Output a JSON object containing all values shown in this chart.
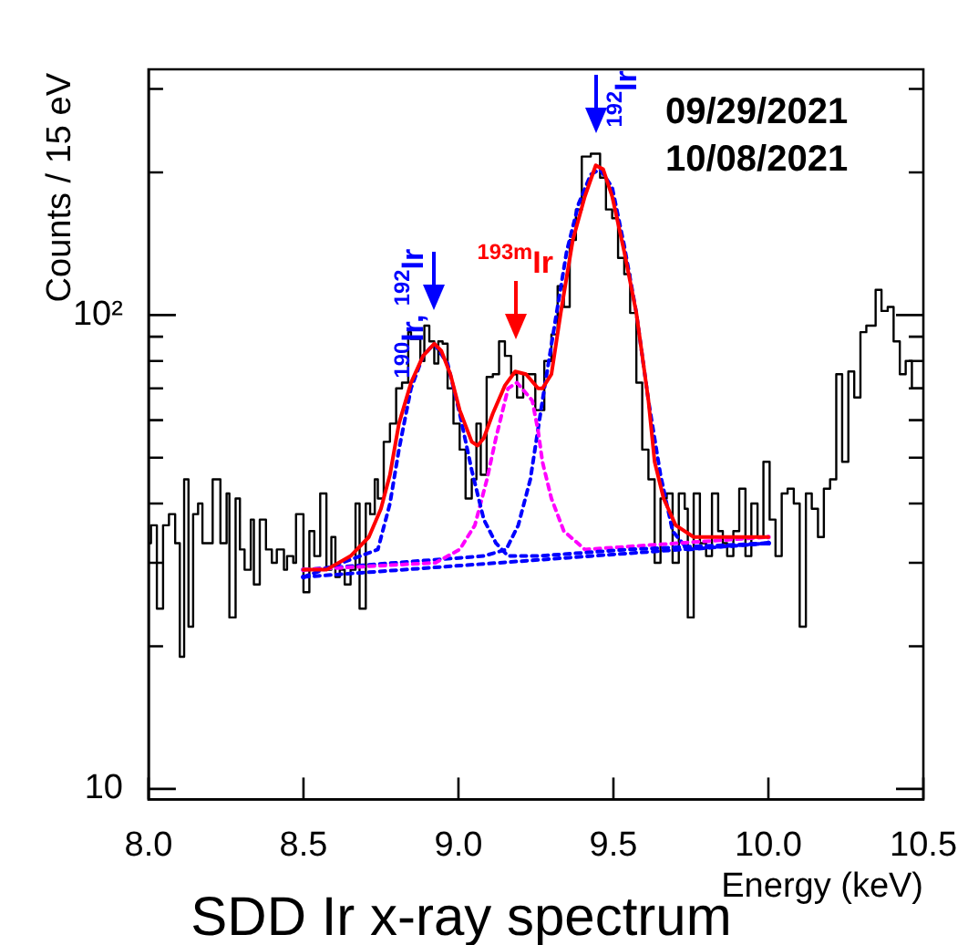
{
  "chart_data": {
    "type": "step",
    "xlabel": "Energy (keV)",
    "ylabel": "Counts / 15 eV",
    "log": "y",
    "xlim": [
      8.0,
      10.5
    ],
    "xticks": [
      {
        "value": 8,
        "label": "8.0"
      },
      {
        "value": 8.5,
        "label": "8.5"
      },
      {
        "value": 9,
        "label": "9.0"
      },
      {
        "value": 9.5,
        "label": "9.5"
      },
      {
        "value": 10,
        "label": "10.0"
      },
      {
        "value": 10.5,
        "label": "10.5"
      }
    ],
    "ylim": [
      9.5,
      330
    ],
    "yticks": [
      10,
      {
        "value": 20,
        "label": null
      },
      {
        "value": 30,
        "label": null
      },
      {
        "value": 40,
        "label": null
      },
      {
        "value": 50,
        "label": null
      },
      {
        "value": 60,
        "label": null
      },
      {
        "value": 70,
        "label": null
      },
      {
        "value": 80,
        "label": null
      },
      {
        "value": 90,
        "label": null
      },
      {
        "value": 100,
        "label": "10²"
      },
      {
        "value": 200,
        "label": null
      },
      {
        "value": 300,
        "label": null
      }
    ],
    "grid": false,
    "legend": false,
    "marker": "none",
    "series": [
      {
        "type": "step",
        "color": "#000000",
        "x": [
          8.0,
          8.008,
          8.027,
          8.047,
          8.066,
          8.086,
          8.101,
          8.115,
          8.129,
          8.144,
          8.16,
          8.174,
          8.207,
          8.232,
          8.252,
          8.261,
          8.281,
          8.295,
          8.31,
          8.33,
          8.34,
          8.359,
          8.379,
          8.398,
          8.414,
          8.437,
          8.447,
          8.467,
          8.476,
          8.5,
          8.519,
          8.535,
          8.554,
          8.574,
          8.59,
          8.603,
          8.617,
          8.633,
          8.652,
          8.668,
          8.681,
          8.701,
          8.715,
          8.73,
          8.74,
          8.759,
          8.779,
          8.799,
          8.818,
          8.838,
          8.847,
          8.877,
          8.89,
          8.906,
          8.922,
          8.935,
          8.949,
          8.965,
          8.984,
          9.004,
          9.023,
          9.043,
          9.058,
          9.072,
          9.091,
          9.111,
          9.131,
          9.15,
          9.17,
          9.189,
          9.209,
          9.228,
          9.248,
          9.277,
          9.3,
          9.32,
          9.34,
          9.359,
          9.379,
          9.398,
          9.427,
          9.457,
          9.476,
          9.496,
          9.515,
          9.535,
          9.554,
          9.574,
          9.593,
          9.613,
          9.633,
          9.652,
          9.672,
          9.691,
          9.711,
          9.73,
          9.74,
          9.759,
          9.779,
          9.799,
          9.818,
          9.838,
          9.853,
          9.867,
          9.887,
          9.906,
          9.926,
          9.945,
          9.965,
          9.984,
          10.004,
          10.023,
          10.043,
          10.062,
          10.082,
          10.101,
          10.121,
          10.14,
          10.16,
          10.179,
          10.199,
          10.219,
          10.238,
          10.258,
          10.277,
          10.297,
          10.316,
          10.346,
          10.365,
          10.385,
          10.404,
          10.424,
          10.443,
          10.463,
          10.482,
          10.5
        ],
        "values": [
          30,
          33,
          36,
          24,
          36,
          38,
          33,
          19,
          45,
          22,
          38,
          40,
          33,
          45,
          33,
          42,
          23,
          41,
          32,
          29,
          37,
          27,
          37,
          32,
          30,
          32,
          29,
          31,
          30,
          38,
          26,
          35,
          31,
          42,
          29,
          34,
          28,
          29,
          27,
          29,
          40,
          24,
          40,
          38,
          45,
          41,
          54,
          59,
          70,
          72,
          92,
          89,
          80,
          95,
          88,
          79,
          88,
          87,
          70,
          59,
          52,
          41,
          45,
          59,
          46,
          74,
          75,
          88,
          82,
          75,
          67,
          75,
          75,
          63,
          80,
          91,
          115,
          104,
          144,
          167,
          216,
          219,
          195,
          167,
          160,
          132,
          122,
          101,
          72,
          52,
          45,
          30,
          41,
          42,
          30,
          42,
          39,
          23,
          42,
          33,
          31,
          42,
          35,
          33,
          31,
          35,
          43,
          31,
          40,
          34,
          49,
          37,
          31,
          42,
          43,
          40,
          22,
          42,
          39,
          34,
          43,
          45,
          75,
          49,
          76,
          67,
          92,
          95,
          113,
          102,
          104,
          88,
          75,
          80,
          70,
          70
        ]
      },
      {
        "type": "line",
        "color": "#ff0000",
        "line_style": "solid",
        "x": [
          8.5,
          8.574,
          8.652,
          8.711,
          8.75,
          8.779,
          8.808,
          8.847,
          8.886,
          8.922,
          8.945,
          8.974,
          9.004,
          9.043,
          9.062,
          9.082,
          9.111,
          9.15,
          9.183,
          9.218,
          9.257,
          9.271,
          9.3,
          9.33,
          9.369,
          9.408,
          9.443,
          9.467,
          9.496,
          9.535,
          9.574,
          9.613,
          9.633,
          9.662,
          9.701,
          9.759,
          9.838,
          10.0
        ],
        "values": [
          29,
          29,
          31,
          34,
          39,
          46,
          59,
          72,
          82,
          87,
          84,
          75,
          63,
          54,
          53,
          55,
          62,
          71,
          76,
          75,
          70,
          70,
          75,
          101,
          144,
          178,
          207,
          203,
          178,
          136,
          101,
          66,
          49,
          41,
          36,
          34,
          34,
          34
        ]
      },
      {
        "type": "line",
        "color": "#0000ff",
        "line_style": "dotted",
        "x": [
          8.5,
          8.74,
          8.779,
          8.808,
          8.847,
          8.886,
          8.922,
          8.965,
          9.004,
          9.043,
          9.082,
          9.121,
          9.16,
          9.257,
          9.545,
          10.0
        ],
        "values": [
          28,
          32,
          40,
          52,
          70,
          82,
          87,
          79,
          62,
          47,
          37,
          33,
          31,
          31,
          32,
          33
        ]
      },
      {
        "type": "line",
        "color": "#ff00ff",
        "line_style": "dotted",
        "x": [
          8.5,
          8.926,
          9.004,
          9.053,
          9.092,
          9.121,
          9.16,
          9.189,
          9.238,
          9.257,
          9.271,
          9.3,
          9.34,
          9.408,
          10.0
        ],
        "values": [
          29,
          30,
          32,
          36,
          45,
          55,
          70,
          72,
          66,
          57,
          49,
          41,
          35,
          32,
          34
        ]
      },
      {
        "type": "line",
        "color": "#0000ff",
        "line_style": "dotted",
        "x": [
          8.5,
          9.082,
          9.154,
          9.193,
          9.232,
          9.271,
          9.31,
          9.349,
          9.388,
          9.427,
          9.457,
          9.496,
          9.535,
          9.574,
          9.613,
          9.652,
          9.691,
          9.74,
          10.0
        ],
        "values": [
          29,
          31,
          32,
          36,
          45,
          66,
          95,
          136,
          172,
          198,
          203,
          186,
          140,
          101,
          66,
          46,
          35,
          32,
          33
        ]
      },
      {
        "type": "line",
        "color": "#0000ff",
        "line_style": "dotted",
        "x": [
          8.5,
          10.0
        ],
        "values": [
          28,
          33
        ]
      }
    ],
    "annotations": [
      {
        "text": "$^{190}$Ir, $^{192}$Ir",
        "x": 8.922,
        "y": 87
      },
      {
        "text": "$^{193m}$Ir",
        "x": 9.183,
        "y": 76
      },
      {
        "text": "$^{192}$Ir",
        "x": 9.443,
        "y": 207
      },
      "09/29/2021",
      "10/08/2021",
      "SDD Ir x-ray spectrum"
    ]
  }
}
